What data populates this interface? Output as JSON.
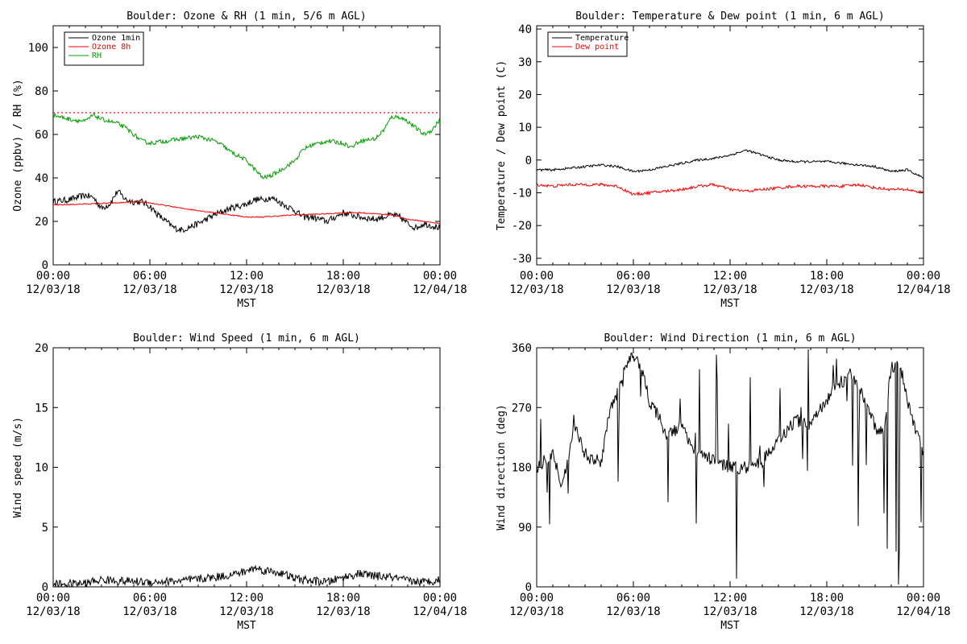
{
  "charts": [
    {
      "type": "line",
      "title": "Boulder: Ozone & RH (1 min, 5/6 m AGL)",
      "ylabel": "Ozone (ppbv) / RH (%)",
      "xlabel": "MST",
      "ylim": [
        0,
        110
      ],
      "yticks": [
        0,
        20,
        40,
        60,
        80,
        100
      ],
      "legend": "top-left",
      "reference_line": {
        "y": 70,
        "color": "#ff0000",
        "style": "dotted"
      },
      "series": [
        {
          "name": "Ozone 1min",
          "color": "#000000",
          "x": [
            0,
            1,
            2,
            2.5,
            3,
            3.5,
            4,
            4.5,
            5,
            5.5,
            6,
            6.5,
            7,
            7.5,
            8,
            9,
            10,
            11,
            12,
            12.5,
            13,
            13.5,
            14,
            15,
            15.5,
            16,
            17,
            18,
            19,
            20,
            21,
            21.5,
            22,
            22.5,
            23,
            23.5,
            24
          ],
          "y": [
            29,
            30,
            32,
            31,
            26,
            28,
            34,
            30,
            29,
            29,
            27,
            23,
            20,
            17,
            16,
            19,
            23,
            26,
            28,
            30,
            30,
            31,
            29,
            25,
            22,
            22,
            20,
            24,
            22,
            21,
            23,
            22,
            19,
            17,
            19,
            18,
            17
          ],
          "noise": 1.5
        },
        {
          "name": "Ozone 8h",
          "color": "#ff0000",
          "x": [
            0,
            2,
            4,
            5,
            6,
            8,
            10,
            12,
            13,
            15,
            17,
            18,
            19,
            20,
            21,
            22,
            24
          ],
          "y": [
            27.5,
            28,
            28.5,
            29,
            28.5,
            26,
            24,
            22,
            22,
            23,
            23.5,
            24,
            24,
            23.5,
            23,
            21,
            19
          ],
          "noise": 0.25
        },
        {
          "name": "RH",
          "color": "#00a000",
          "x": [
            0,
            1,
            2,
            2.5,
            3,
            3.5,
            4,
            4.5,
            5,
            5.5,
            6,
            7,
            8,
            9,
            10,
            10.5,
            11,
            11.5,
            12,
            12.5,
            13,
            13.5,
            14,
            15,
            15.5,
            16,
            17,
            18,
            18.5,
            19,
            20,
            20.5,
            21,
            21.5,
            22,
            23,
            23.5,
            24
          ],
          "y": [
            69,
            67,
            66,
            69,
            67,
            66,
            65,
            63,
            60,
            57,
            56,
            57,
            58,
            59,
            57,
            55,
            52,
            50,
            48,
            44,
            40,
            41,
            43,
            48,
            53,
            55,
            57,
            56,
            54,
            57,
            58,
            62,
            68,
            68,
            66,
            60,
            62,
            67
          ],
          "noise": 1.0
        }
      ]
    },
    {
      "type": "line",
      "title": "Boulder: Temperature & Dew point (1 min, 6 m AGL)",
      "ylabel": "Temperature / Dew point (C)",
      "xlabel": "MST",
      "ylim": [
        -32,
        41
      ],
      "yticks": [
        -30,
        -20,
        -10,
        0,
        10,
        20,
        30,
        40
      ],
      "legend": "top-left",
      "series": [
        {
          "name": "Temperature",
          "color": "#000000",
          "x": [
            0,
            1,
            2,
            3,
            4,
            5,
            6,
            7,
            8,
            9,
            10,
            11,
            12,
            13,
            14,
            15,
            16,
            17,
            18,
            19,
            20,
            21,
            22,
            23,
            24
          ],
          "y": [
            -3,
            -3,
            -2.5,
            -2,
            -1.5,
            -2,
            -3.5,
            -3,
            -2,
            -1,
            0,
            0.5,
            1.5,
            3,
            1.5,
            0,
            -0.5,
            -0.5,
            -0.5,
            -1,
            -1.5,
            -2,
            -3.5,
            -3,
            -5.5
          ],
          "noise": 0.35
        },
        {
          "name": "Dew point",
          "color": "#ff0000",
          "x": [
            0,
            1,
            2,
            3,
            4,
            5,
            6,
            7,
            8,
            9,
            10,
            11,
            12,
            13,
            14,
            15,
            16,
            17,
            18,
            19,
            20,
            21,
            22,
            23,
            24
          ],
          "y": [
            -7.5,
            -8,
            -7.5,
            -7.5,
            -7.5,
            -8,
            -10.5,
            -10,
            -9.5,
            -9,
            -8,
            -7.5,
            -9,
            -9.5,
            -9,
            -8.5,
            -8,
            -8,
            -8,
            -8,
            -7.5,
            -8.5,
            -9,
            -9,
            -10
          ],
          "noise": 0.45
        }
      ]
    },
    {
      "type": "line",
      "title": "Boulder: Wind Speed (1 min, 6 m AGL)",
      "ylabel": "Wind speed (m/s)",
      "xlabel": "MST",
      "ylim": [
        0,
        20
      ],
      "yticks": [
        0,
        5,
        10,
        15,
        20
      ],
      "series": [
        {
          "name": "",
          "color": "#000000",
          "x": [
            0,
            2,
            3,
            4,
            6,
            8,
            10,
            11,
            12,
            12.5,
            13,
            14,
            15,
            16,
            17,
            18,
            19,
            20,
            21,
            22,
            23,
            24
          ],
          "y": [
            0.2,
            0.3,
            0.6,
            0.5,
            0.4,
            0.5,
            0.8,
            1.0,
            1.3,
            1.6,
            1.4,
            1.2,
            0.7,
            0.5,
            0.4,
            0.8,
            1.1,
            0.9,
            0.8,
            0.5,
            0.4,
            0.6
          ],
          "noise": 0.35,
          "min": 0
        }
      ]
    },
    {
      "type": "line",
      "title": "Boulder: Wind Direction (1 min, 6 m AGL)",
      "ylabel": "Wind direction (deg)",
      "xlabel": "MST",
      "ylim": [
        0,
        360
      ],
      "yticks": [
        0,
        90,
        180,
        270,
        360
      ],
      "series": [
        {
          "name": "",
          "color": "#000000",
          "x": [
            0,
            1,
            1.5,
            2,
            2.3,
            2.6,
            3,
            3.5,
            4,
            4.5,
            5,
            5.5,
            6,
            6.5,
            7,
            7.5,
            8,
            9,
            10,
            11,
            12,
            13,
            14,
            15,
            15.5,
            16,
            17,
            18,
            18.5,
            19,
            19.5,
            20,
            21,
            21.5,
            22,
            22.5,
            23,
            23.5,
            24
          ],
          "y": [
            180,
            200,
            160,
            190,
            250,
            230,
            200,
            190,
            190,
            260,
            290,
            330,
            350,
            330,
            280,
            260,
            230,
            240,
            200,
            190,
            180,
            180,
            190,
            220,
            235,
            250,
            245,
            280,
            300,
            310,
            320,
            300,
            240,
            230,
            330,
            340,
            280,
            240,
            200
          ],
          "noise": 10,
          "min": 0,
          "max": 360,
          "wild": true
        }
      ]
    }
  ],
  "xaxis": {
    "range_hours": [
      0,
      24
    ],
    "tick_times": [
      "00:00",
      "06:00",
      "12:00",
      "18:00",
      "00:00"
    ],
    "tick_dates": [
      "12/03/18",
      "12/03/18",
      "12/03/18",
      "12/03/18",
      "12/04/18"
    ]
  }
}
